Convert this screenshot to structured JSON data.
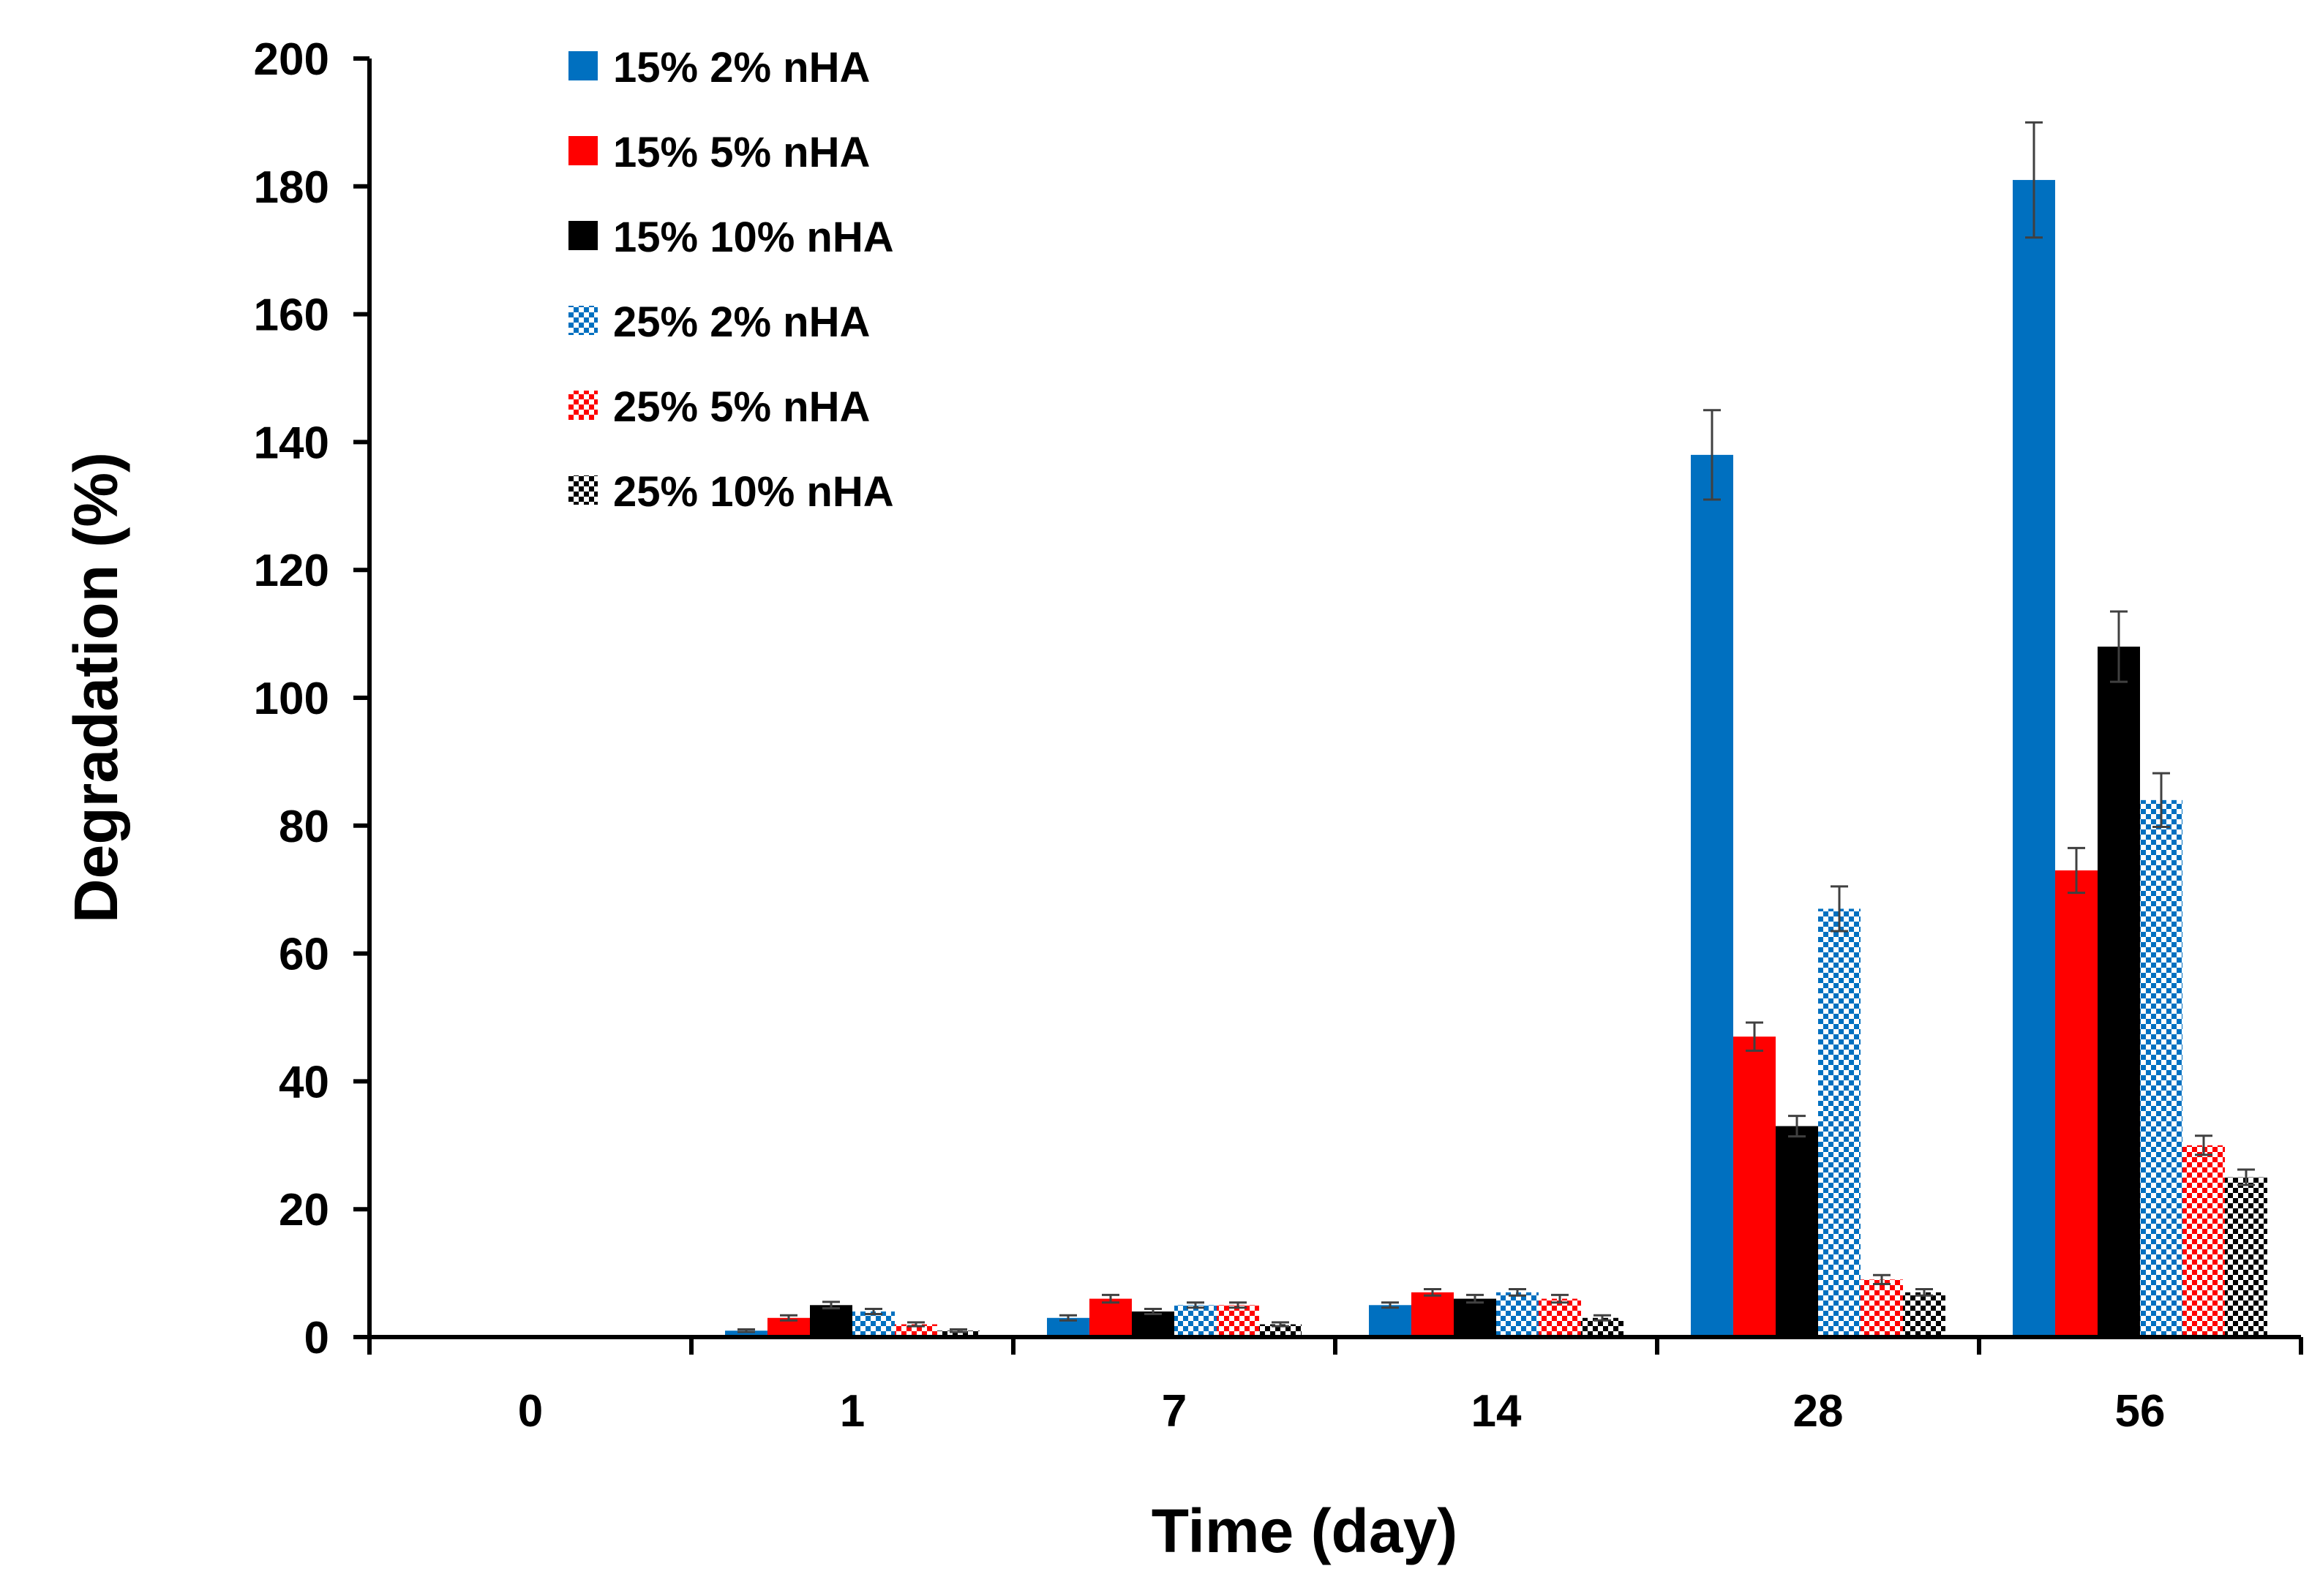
{
  "chart_data": {
    "type": "bar",
    "xlabel": "Time (day)",
    "ylabel": "Degradation (%)",
    "ylim": [
      0,
      200
    ],
    "yticks": [
      "0",
      "20",
      "40",
      "60",
      "80",
      "100",
      "120",
      "140",
      "160",
      "180",
      "200"
    ],
    "categories": [
      "0",
      "1",
      "7",
      "14",
      "28",
      "56"
    ],
    "legend_position": "top-left",
    "series": [
      {
        "name": "15% 2% nHA",
        "color": "#0070C0",
        "pattern": "solid",
        "values": [
          0,
          1,
          3,
          5,
          138,
          181
        ],
        "errors": [
          0,
          0.2,
          0.4,
          0.4,
          7,
          9
        ]
      },
      {
        "name": "15% 5% nHA",
        "color": "#FF0000",
        "pattern": "solid",
        "values": [
          0,
          3,
          6,
          7,
          47,
          73
        ],
        "errors": [
          0,
          0.4,
          0.6,
          0.5,
          2.2,
          3.5
        ]
      },
      {
        "name": "15% 10% nHA",
        "color": "#000000",
        "pattern": "solid",
        "values": [
          0,
          5,
          4,
          6,
          33,
          108
        ],
        "errors": [
          0,
          0.5,
          0.4,
          0.6,
          1.6,
          5.5
        ]
      },
      {
        "name": "25% 2% nHA",
        "color": "#0070C0",
        "pattern": "checker",
        "values": [
          0,
          4,
          5,
          7,
          67,
          84
        ],
        "errors": [
          0,
          0.4,
          0.4,
          0.5,
          3.5,
          4.2
        ]
      },
      {
        "name": "25% 5% nHA",
        "color": "#FF0000",
        "pattern": "checker",
        "values": [
          0,
          2,
          5,
          6,
          9,
          30
        ],
        "errors": [
          0,
          0.3,
          0.4,
          0.6,
          0.7,
          1.5
        ]
      },
      {
        "name": "25% 10% nHA",
        "color": "#000000",
        "pattern": "checker",
        "values": [
          0,
          1,
          2,
          3,
          7,
          25
        ],
        "errors": [
          0,
          0.2,
          0.3,
          0.4,
          0.5,
          1.2
        ]
      }
    ]
  }
}
